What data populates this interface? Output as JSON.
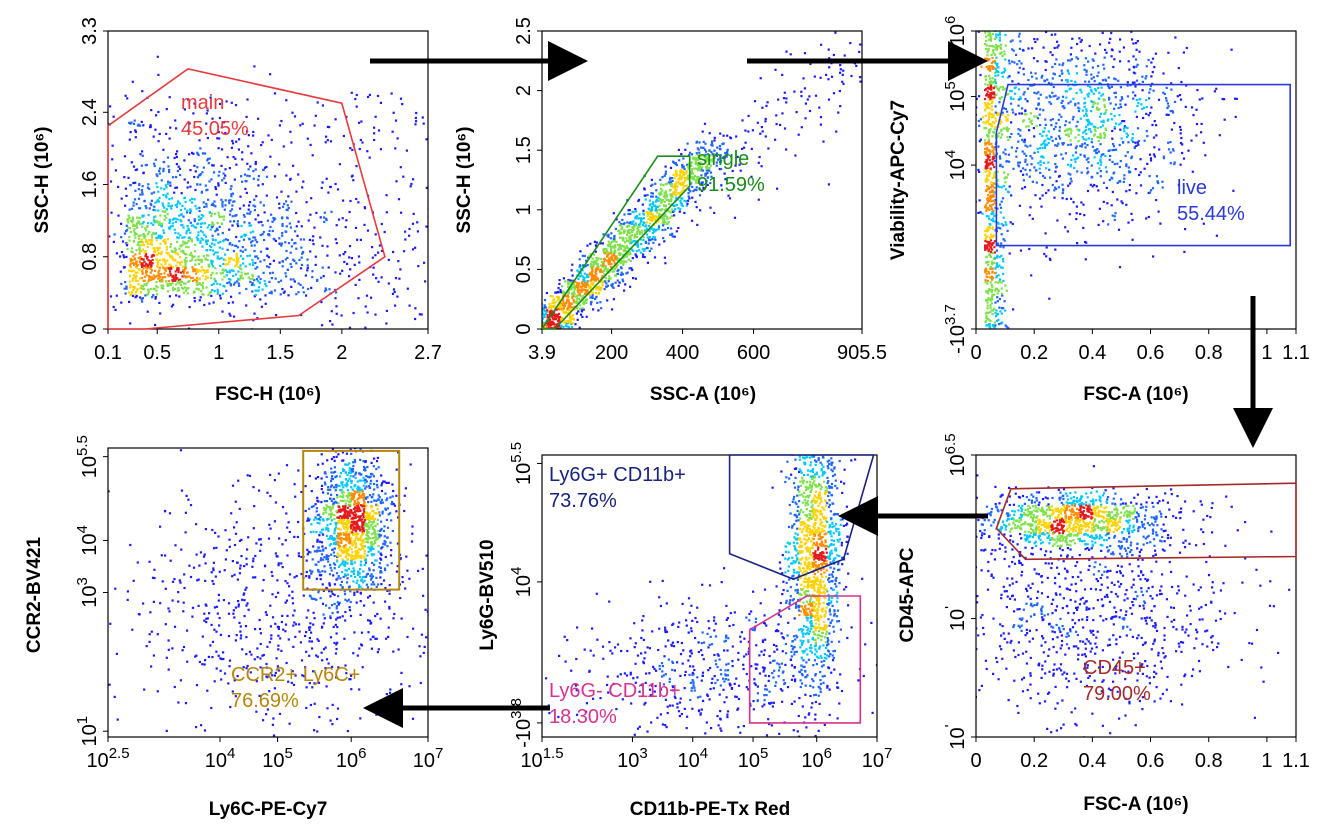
{
  "colors": {
    "density_low": "#1a1aff",
    "density_mid": "#00c8ff",
    "density_high": "#ffd200",
    "density_peak": "#e41a1c",
    "arrow": "#000000"
  },
  "chart_data": [
    {
      "id": "p1",
      "type": "scatter",
      "subtype": "flow-cytometry-density",
      "xlabel": "FSC-H (10⁶)",
      "ylabel": "SSC-H (10⁶)",
      "xticks": [
        "0.1",
        "0.5",
        "1",
        "1.5",
        "2",
        "2.7"
      ],
      "xtick_values": [
        0.1,
        0.5,
        1,
        1.5,
        2,
        2.7
      ],
      "yticks": [
        "0",
        "0.8",
        "1.6",
        "2.4",
        "3.3"
      ],
      "ytick_values": [
        0,
        0.8,
        1.6,
        2.4,
        3.3
      ],
      "xlim": [
        0.1,
        2.7
      ],
      "ylim": [
        0,
        3.3
      ],
      "gate": {
        "label": "main",
        "percent": "45.05%",
        "color": "#e8393d",
        "shape": "polygon",
        "points": [
          [
            0.1,
            2.25
          ],
          [
            0.75,
            2.88
          ],
          [
            2.0,
            2.5
          ],
          [
            2.35,
            0.8
          ],
          [
            1.65,
            0.15
          ],
          [
            0.4,
            0.0
          ],
          [
            0.1,
            0.0
          ]
        ]
      },
      "population": {
        "center": [
          0.55,
          0.45
        ],
        "spread": [
          0.45,
          0.35
        ],
        "tail": [
          [
            0.9,
            1.2,
            0.4
          ]
        ]
      }
    },
    {
      "id": "p2",
      "type": "scatter",
      "subtype": "flow-cytometry-density",
      "xlabel": "SSC-A (10⁶)",
      "ylabel": "SSC-H (10⁶)",
      "xticks": [
        "3.9",
        "200",
        "400",
        "600",
        "905.5"
      ],
      "xtick_values": [
        3.9,
        200,
        400,
        600,
        905.5
      ],
      "yticks": [
        "0",
        "0.5",
        "1",
        "1.5",
        "2",
        "2.5"
      ],
      "ytick_values": [
        0,
        0.5,
        1,
        1.5,
        2,
        2.5
      ],
      "xlim": [
        3.9,
        905.5
      ],
      "ylim": [
        0,
        2.5
      ],
      "gate": {
        "label": "single",
        "percent": "91.59%",
        "color": "#1a8c1a",
        "shape": "polygon",
        "points": [
          [
            3.9,
            0.0
          ],
          [
            330,
            1.45
          ],
          [
            420,
            1.45
          ],
          [
            420,
            1.2
          ],
          [
            40,
            0.0
          ]
        ]
      },
      "population": {
        "diagonal": true
      }
    },
    {
      "id": "p3",
      "type": "scatter",
      "subtype": "flow-cytometry-density",
      "xlabel": "FSC-A (10⁶)",
      "ylabel": "Viability-APC-Cy7",
      "xticks": [
        "0",
        "0.2",
        "0.4",
        "0.6",
        "0.8",
        "1",
        "1.1"
      ],
      "xtick_values": [
        0,
        0.2,
        0.4,
        0.6,
        0.8,
        1,
        1.1
      ],
      "yticks": [
        "-10",
        "10",
        "10",
        "10"
      ],
      "ytick_exp": [
        "3.7",
        "4",
        "5",
        "6"
      ],
      "ytick_values": [
        0,
        0.55,
        0.78,
        1.0
      ],
      "xlim": [
        0,
        1.1
      ],
      "ylim": [
        0,
        1.0
      ],
      "gate": {
        "label": "live",
        "percent": "55.44%",
        "color": "#2b3bd6",
        "shape": "polygon",
        "points": [
          [
            0.07,
            0.28
          ],
          [
            0.07,
            0.66
          ],
          [
            0.11,
            0.82
          ],
          [
            1.08,
            0.82
          ],
          [
            1.08,
            0.28
          ]
        ]
      },
      "population": {
        "main": [
          0.33,
          0.7
        ],
        "stripe": 0.03
      }
    },
    {
      "id": "p4",
      "type": "scatter",
      "subtype": "flow-cytometry-density",
      "xlabel": "FSC-A (10⁶)",
      "ylabel": "CD45-APC",
      "xticks": [
        "0",
        "0.2",
        "0.4",
        "0.6",
        "0.8",
        "1",
        "1.1"
      ],
      "xtick_values": [
        0,
        0.2,
        0.4,
        0.6,
        0.8,
        1,
        1.1
      ],
      "yticks": [
        "10",
        "10",
        "10"
      ],
      "ytick_exp": [
        "'",
        "'",
        "6.5"
      ],
      "ytick_values": [
        0.0,
        0.42,
        1.0
      ],
      "xlim": [
        0,
        1.1
      ],
      "ylim": [
        0,
        1.0
      ],
      "gate": {
        "label": "CD45+",
        "percent": "79.00%",
        "color": "#a52a2a",
        "shape": "polygon",
        "points": [
          [
            0.07,
            0.74
          ],
          [
            0.12,
            0.88
          ],
          [
            1.1,
            0.9
          ],
          [
            1.1,
            0.64
          ],
          [
            0.17,
            0.63
          ]
        ]
      },
      "population": {
        "main": [
          0.3,
          0.74
        ],
        "low": [
          0.45,
          0.45
        ]
      }
    },
    {
      "id": "p5",
      "type": "scatter",
      "subtype": "flow-cytometry-density",
      "xlabel": "CD11b-PE-Tx Red",
      "ylabel": "Ly6G-BV510",
      "xticks": [
        "10",
        "10",
        "10",
        "10",
        "10",
        "10"
      ],
      "xtick_exp": [
        "1.5",
        "3",
        "4",
        "5",
        "6",
        "7"
      ],
      "xtick_values": [
        0.0,
        0.27,
        0.45,
        0.63,
        0.82,
        1.0
      ],
      "yticks": [
        "-10",
        "10",
        "10"
      ],
      "ytick_exp": [
        "3.8",
        "4",
        "5.5"
      ],
      "ytick_values": [
        0.05,
        0.55,
        0.97
      ],
      "xlim": [
        0,
        1.0
      ],
      "ylim": [
        0,
        1.0
      ],
      "gates": [
        {
          "label": "Ly6G+ CD11b+",
          "percent": "73.76%",
          "color": "#1a237e",
          "shape": "polygon",
          "points": [
            [
              0.56,
              1.0
            ],
            [
              0.56,
              0.65
            ],
            [
              0.75,
              0.56
            ],
            [
              0.9,
              0.63
            ],
            [
              0.99,
              1.0
            ]
          ]
        },
        {
          "label": "Ly6G- CD11b+",
          "percent": "18.30%",
          "color": "#d6338f",
          "shape": "polygon",
          "points": [
            [
              0.62,
              0.38
            ],
            [
              0.62,
              0.05
            ],
            [
              0.95,
              0.05
            ],
            [
              0.95,
              0.5
            ],
            [
              0.79,
              0.5
            ]
          ]
        }
      ],
      "population": {
        "main": [
          0.82,
          0.75
        ]
      }
    },
    {
      "id": "p6",
      "type": "scatter",
      "subtype": "flow-cytometry-density",
      "xlabel": "Ly6C-PE-Cy7",
      "ylabel": "CCR2-BV421",
      "xticks": [
        "10",
        "10",
        "10",
        "10",
        "10"
      ],
      "xtick_exp": [
        "2.5",
        "4",
        "5",
        "6",
        "7"
      ],
      "xtick_values": [
        0.0,
        0.35,
        0.53,
        0.76,
        1.0
      ],
      "yticks": [
        "10",
        "10",
        "10",
        "10"
      ],
      "ytick_exp": [
        "1",
        "3",
        "4",
        "5.5"
      ],
      "ytick_values": [
        0.02,
        0.5,
        0.68,
        0.97
      ],
      "xlim": [
        0,
        1.0
      ],
      "ylim": [
        0,
        1.0
      ],
      "gate": {
        "label": "CCR2+ Ly6C+",
        "percent": "76.69%",
        "color": "#b8860b",
        "shape": "rect",
        "points": [
          [
            0.61,
            0.51
          ],
          [
            0.91,
            0.99
          ]
        ]
      },
      "population": {
        "main": [
          0.77,
          0.7
        ]
      }
    }
  ]
}
